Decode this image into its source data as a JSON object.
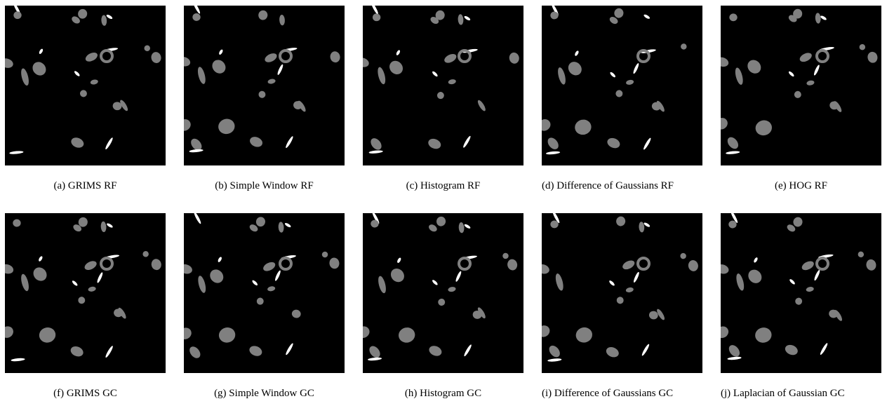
{
  "figure": {
    "panels": [
      {
        "caption": "(a) GRIMS RF"
      },
      {
        "caption": "(b) Simple Window RF"
      },
      {
        "caption": "(c) Histogram RF"
      },
      {
        "caption": "(d) Difference of Gaussians RF"
      },
      {
        "caption": "(e) HOG RF"
      },
      {
        "caption": "(f) GRIMS GC"
      },
      {
        "caption": "(g) Simple Window GC"
      },
      {
        "caption": "(h) Histogram GC"
      },
      {
        "caption": "(i) Difference of Gaussians GC"
      },
      {
        "caption": "(j) Laplacian of Gaussian GC"
      }
    ]
  }
}
